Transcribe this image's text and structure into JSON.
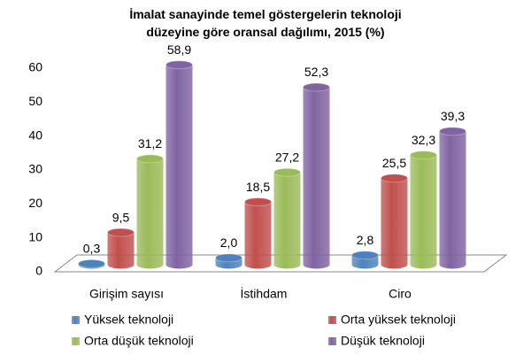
{
  "chart_data": {
    "type": "bar3d",
    "title": "İmalat sanayinde temel göstergelerin teknoloji düzeyine göre oransal dağılımı, 2015 (%)",
    "categories": [
      "Girişim sayısı",
      "İstihdam",
      "Ciro"
    ],
    "series": [
      {
        "name": "Yüksek teknoloji",
        "color": "#4f81bd",
        "values": [
          0.3,
          2.0,
          2.8
        ],
        "value_labels": [
          "0,3",
          "2,0",
          "2,8"
        ]
      },
      {
        "name": "Orta yüksek teknoloji",
        "color": "#c0504d",
        "values": [
          9.5,
          18.5,
          25.5
        ],
        "value_labels": [
          "9,5",
          "18,5",
          "25,5"
        ]
      },
      {
        "name": "Orta düşük teknoloji",
        "color": "#9bbb59",
        "values": [
          31.2,
          27.2,
          32.3
        ],
        "value_labels": [
          "31,2",
          "27,2",
          "32,3"
        ]
      },
      {
        "name": "Düşük teknoloji",
        "color": "#8064a2",
        "values": [
          58.9,
          52.3,
          39.3
        ],
        "value_labels": [
          "58,9",
          "52,3",
          "39,3"
        ]
      }
    ],
    "ylim": [
      0,
      60
    ],
    "yticks": [
      0,
      10,
      20,
      30,
      40,
      50,
      60
    ],
    "grid": false,
    "legend": "bottom"
  }
}
